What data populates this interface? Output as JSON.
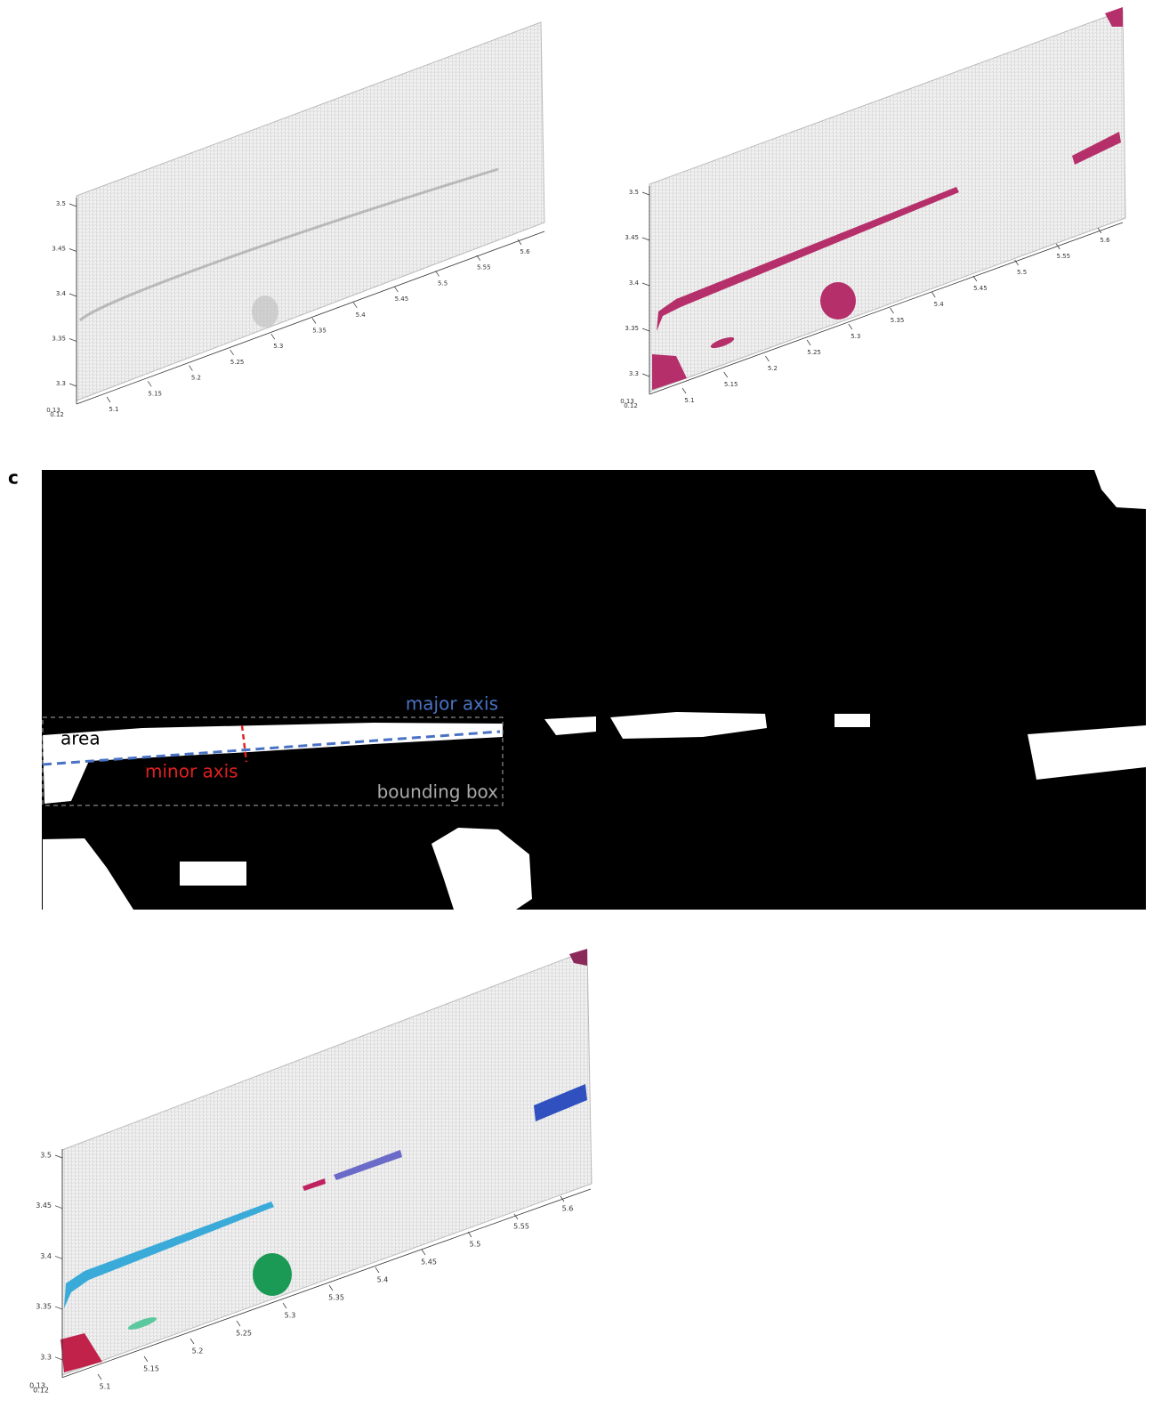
{
  "panels": [
    {
      "y_ticks": [
        "3.5",
        "3.45",
        "3.4",
        "3.35",
        "3.3"
      ],
      "z_ticks": [
        "0.13",
        "0.12"
      ],
      "x_ticks": [
        "5.1",
        "5.15",
        "5.2",
        "5.25",
        "5.3",
        "5.35",
        "5.4",
        "5.45",
        "5.5",
        "5.55",
        "5.6"
      ]
    },
    {
      "y_ticks": [
        "3.5",
        "3.45",
        "3.4",
        "3.35",
        "3.3"
      ],
      "z_ticks": [
        "0.13",
        "0.12"
      ],
      "x_ticks": [
        "5.1",
        "5.15",
        "5.2",
        "5.25",
        "5.3",
        "5.35",
        "5.4",
        "5.45",
        "5.5",
        "5.55",
        "5.6"
      ]
    },
    {
      "y_ticks": [
        "3.5",
        "3.45",
        "3.4",
        "3.35",
        "3.3"
      ],
      "z_ticks": [
        "0.13",
        "0.12"
      ],
      "x_ticks": [
        "5.1",
        "5.15",
        "5.2",
        "5.25",
        "5.3",
        "5.35",
        "5.4",
        "5.45",
        "5.5",
        "5.55",
        "5.6"
      ]
    }
  ],
  "panel_c": {
    "label": "c",
    "annotations": {
      "major_axis": "major axis",
      "area": "area",
      "minor_axis": "minor axis",
      "bounding_box": "bounding box"
    }
  }
}
